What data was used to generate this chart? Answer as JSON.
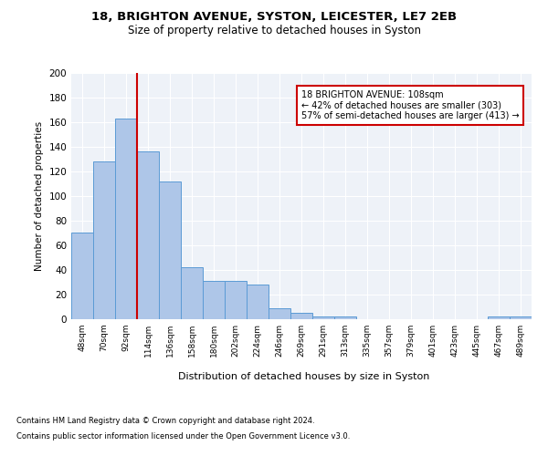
{
  "title1": "18, BRIGHTON AVENUE, SYSTON, LEICESTER, LE7 2EB",
  "title2": "Size of property relative to detached houses in Syston",
  "xlabel": "Distribution of detached houses by size in Syston",
  "ylabel": "Number of detached properties",
  "bar_labels": [
    "48sqm",
    "70sqm",
    "92sqm",
    "114sqm",
    "136sqm",
    "158sqm",
    "180sqm",
    "202sqm",
    "224sqm",
    "246sqm",
    "269sqm",
    "291sqm",
    "313sqm",
    "335sqm",
    "357sqm",
    "379sqm",
    "401sqm",
    "423sqm",
    "445sqm",
    "467sqm",
    "489sqm"
  ],
  "bar_values": [
    70,
    128,
    163,
    136,
    112,
    42,
    31,
    31,
    28,
    9,
    5,
    2,
    2,
    0,
    0,
    0,
    0,
    0,
    0,
    2,
    2
  ],
  "bar_color": "#aec6e8",
  "bar_edge_color": "#5b9bd5",
  "vline_x": 2.5,
  "vline_color": "#cc0000",
  "annotation_text": "18 BRIGHTON AVENUE: 108sqm\n← 42% of detached houses are smaller (303)\n57% of semi-detached houses are larger (413) →",
  "annotation_box_color": "#cc0000",
  "ylim": [
    0,
    200
  ],
  "yticks": [
    0,
    20,
    40,
    60,
    80,
    100,
    120,
    140,
    160,
    180,
    200
  ],
  "footer1": "Contains HM Land Registry data © Crown copyright and database right 2024.",
  "footer2": "Contains public sector information licensed under the Open Government Licence v3.0.",
  "bg_color": "#eef2f8",
  "plot_bg_color": "#eef2f8"
}
